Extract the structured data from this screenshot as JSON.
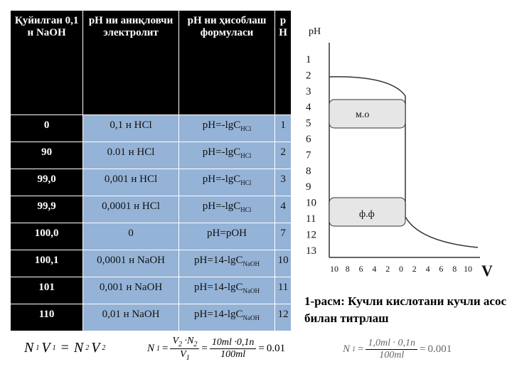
{
  "table": {
    "header": [
      "Қуйилган 0,1 н NaOH",
      "pH ни аниқловчи электролит",
      "pH ни ҳисоблаш формуласи",
      "pH"
    ],
    "rows": [
      [
        "0",
        "0,1 н HCl",
        {
          "main": "pH=-lgC",
          "sub": "HCl"
        },
        "1"
      ],
      [
        "90",
        "0.01 н HCl",
        {
          "main": "pH=-lgC",
          "sub": "HCl"
        },
        "2"
      ],
      [
        "99,0",
        "0,001 н HCl",
        {
          "main": "pH=-lgC",
          "sub": "HCl"
        },
        "3"
      ],
      [
        "99,9",
        "0,0001 н HCl",
        {
          "main": "pH=-lgC",
          "sub": "HCl"
        },
        "4"
      ],
      [
        "100,0",
        "0",
        {
          "main": "pH=pOH"
        },
        "7"
      ],
      [
        "100,1",
        "0,0001 н NaOH",
        {
          "main": "pH=14-lgC",
          "sub": "NaOH"
        },
        "10"
      ],
      [
        "101",
        "0,001 н NaOH",
        {
          "main": "pH=14-lgC",
          "sub": "NaOH"
        },
        "11"
      ],
      [
        "110",
        "0,01 н NaOH",
        {
          "main": "pH=14-lgC",
          "sub": "NaOH"
        },
        "12"
      ]
    ]
  },
  "figure": {
    "y_label": "pH",
    "y_ticks": [
      "1",
      "2",
      "3",
      "4",
      "5",
      "6",
      "7",
      "8",
      "9",
      "10",
      "11",
      "12",
      "13"
    ],
    "x_ticks": [
      "10",
      "8",
      "6",
      "4",
      "2",
      "0",
      "2",
      "4",
      "6",
      "8",
      "10"
    ],
    "x_label": "V",
    "labels": [
      "м.о",
      "ф.ф"
    ],
    "caption": "1-расм: Кучли кислотани кучли асос билан титрлаш"
  },
  "formulas": {
    "f1": {
      "a": "N",
      "a_sub": "1",
      "b": "V",
      "b_sub": "1",
      "eq": "=",
      "c": "N",
      "c_sub": "2",
      "d": "V",
      "d_sub": "2"
    },
    "f2": {
      "n": "N",
      "n_sub": "1",
      "eq": "=",
      "v2": "V",
      "v2_sub": "2",
      "dot": "·N",
      "n2_sub": "2",
      "v1": "V",
      "v1_sub": "1",
      "num": "10ml ·0,1n",
      "den": "100ml",
      "result": "0.01"
    },
    "f3": {
      "n": "N",
      "n_sub": "1",
      "eq": "=",
      "num": "1,0ml · 0,1n",
      "den": "100ml",
      "result": "0.001"
    }
  }
}
